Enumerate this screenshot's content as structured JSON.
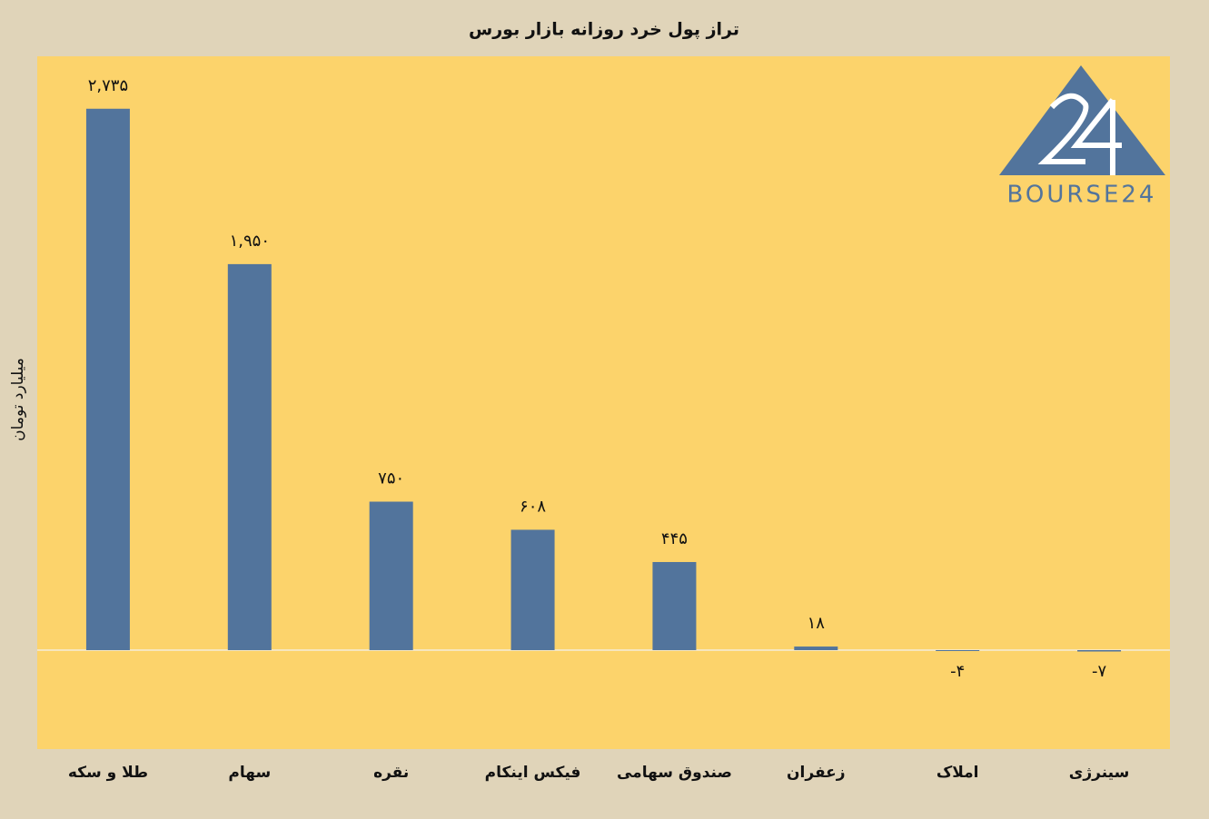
{
  "chart_data": {
    "type": "bar",
    "title": "تراز پول خرد روزانه بازار بورس",
    "y_label": "میلیارد تومان",
    "logo": "BOURSE24",
    "categories": [
      "طلا و سکه",
      "سهام",
      "نقره",
      "فیکس اینکام",
      "صندوق سهامی",
      "زعفران",
      "املاک",
      "سینرژی"
    ],
    "values": [
      2735,
      1950,
      750,
      608,
      445,
      18,
      -4,
      -7
    ],
    "value_labels": [
      "۲,۷۳۵",
      "۱,۹۵۰",
      "۷۵۰",
      "۶۰۸",
      "۴۴۵",
      "۱۸",
      "-۴",
      "-۷"
    ],
    "color": "#52749c",
    "ylim": [
      -500,
      3000
    ]
  }
}
